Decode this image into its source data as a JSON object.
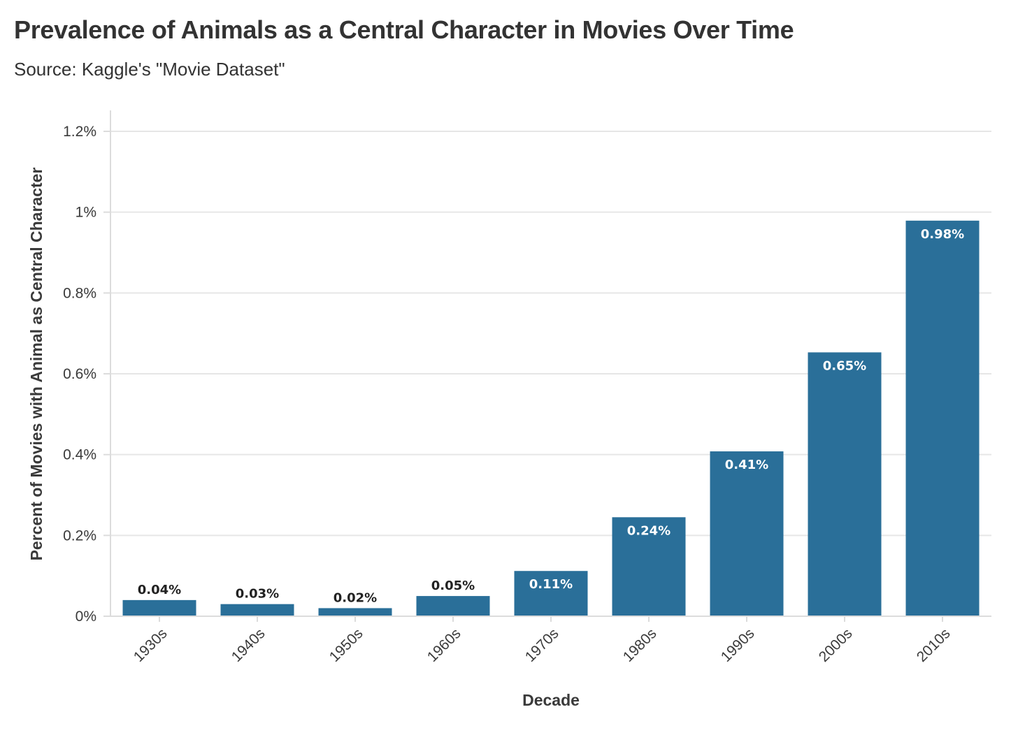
{
  "chart_data": {
    "type": "bar",
    "title": "Prevalence of Animals as a Central Character in Movies Over Time",
    "subtitle": "Source: Kaggle's \"Movie Dataset\"",
    "xlabel": "Decade",
    "ylabel": "Percent of Movies with Animal as Central Character",
    "categories": [
      "1930s",
      "1940s",
      "1950s",
      "1960s",
      "1970s",
      "1980s",
      "1990s",
      "2000s",
      "2010s"
    ],
    "values": [
      0.04,
      0.03,
      0.02,
      0.05,
      0.112,
      0.245,
      0.408,
      0.653,
      0.979
    ],
    "data_labels": [
      "0.04%",
      "0.03%",
      "0.02%",
      "0.05%",
      "0.11%",
      "0.24%",
      "0.41%",
      "0.65%",
      "0.98%"
    ],
    "y_ticks": [
      0,
      0.2,
      0.4,
      0.6,
      0.8,
      1.0,
      1.2
    ],
    "y_tick_labels": [
      "0%",
      "0.2%",
      "0.4%",
      "0.6%",
      "0.8%",
      "1%",
      "1.2%"
    ],
    "ylim": [
      0,
      1.25
    ],
    "grid": "horizontal",
    "legend": "none",
    "bar_color": "#2a6f99",
    "gridline_color": "#e6e6e6",
    "label_color_outside": "#222222",
    "label_color_inside": "#ffffff"
  }
}
